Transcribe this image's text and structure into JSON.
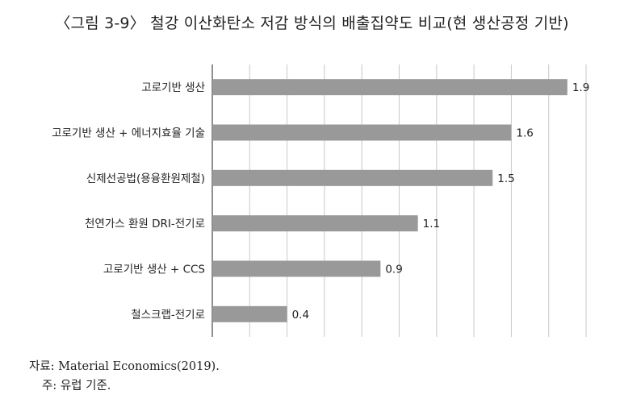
{
  "figure": {
    "title": "〈그림 3-9〉 철강 이산화탄소 저감 방식의 배출집약도 비교(현 생산공정 기반)",
    "source": "자료: Material Economics(2019).",
    "note": "주: 유럽 기준."
  },
  "colors": {
    "bar": "#999999",
    "grid": "#c8c8c8",
    "axis": "#222222",
    "text": "#222222"
  },
  "chart_data": {
    "type": "bar",
    "orientation": "horizontal",
    "categories": [
      "고로기반 생산",
      "고로기반 생산 + 에너지효율 기술",
      "신제선공법(용융환원제철)",
      "천연가스 환원 DRI-전기로",
      "고로기반 생산 + CCS",
      "철스크랩-전기로"
    ],
    "values": [
      1.9,
      1.6,
      1.5,
      1.1,
      0.9,
      0.4
    ],
    "data_labels": [
      "1.9",
      "1.6",
      "1.5",
      "1.1",
      "0.9",
      "0.4"
    ],
    "xlim": [
      0,
      2.0
    ],
    "grid": true,
    "legend": "none",
    "xlabel": "",
    "ylabel": ""
  }
}
